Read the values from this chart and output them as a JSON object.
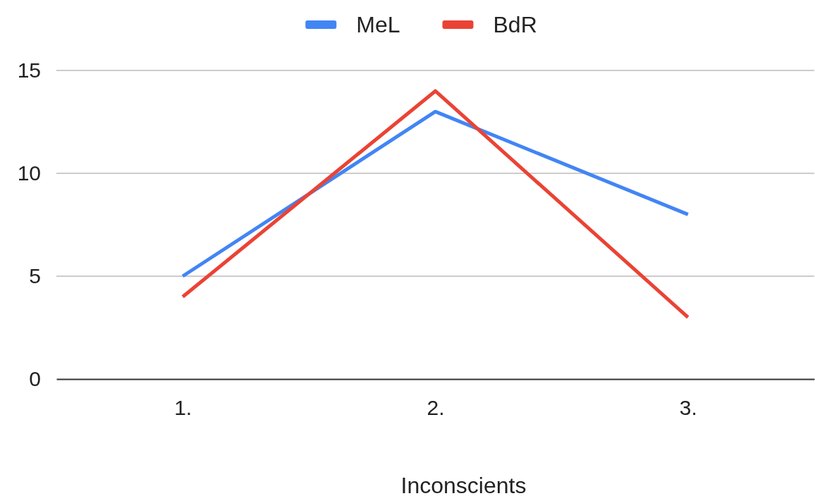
{
  "chart_data": {
    "type": "line",
    "xlabel": "Inconscients",
    "categories": [
      "1.",
      "2.",
      "3."
    ],
    "series": [
      {
        "name": "MeL",
        "color": "#4285f4",
        "values": [
          5,
          13,
          8
        ]
      },
      {
        "name": "BdR",
        "color": "#ea4335",
        "values": [
          4,
          14,
          3
        ]
      }
    ],
    "ylim": [
      0,
      15
    ],
    "yticks": [
      0,
      5,
      10,
      15
    ],
    "grid": "y",
    "legend": "top",
    "marker": "none",
    "line_style": "solid"
  }
}
